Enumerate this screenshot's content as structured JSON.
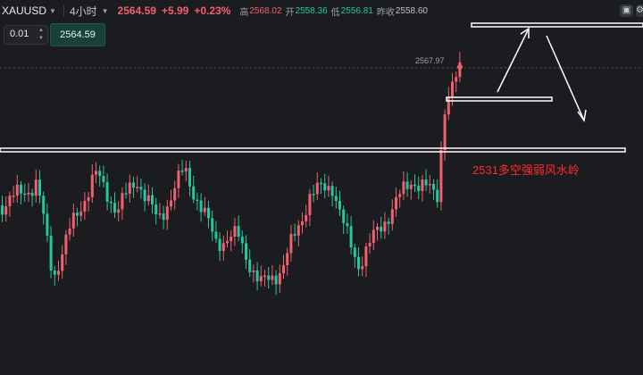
{
  "header": {
    "symbol": "XAUUSD",
    "timeframe": "4小时",
    "last_price": "2564.59",
    "change": "+5.99",
    "change_pct": "+0.23%",
    "high_label": "高",
    "high": "2568.02",
    "open_label": "开",
    "open": "2558.36",
    "low_label": "低",
    "low": "2556.81",
    "prev_close_label": "昨收",
    "prev_close": "2558.60"
  },
  "order": {
    "quantity": "0.01",
    "price_button": "2564.59"
  },
  "chart": {
    "high_marker": "2567.97",
    "annotation": "2531多空强弱风水岭",
    "colors": {
      "up": "#f0616d",
      "down": "#26c6a0",
      "background": "#1b1c20",
      "drawing": "#ffffff",
      "annotation": "#ff2a2a"
    }
  }
}
